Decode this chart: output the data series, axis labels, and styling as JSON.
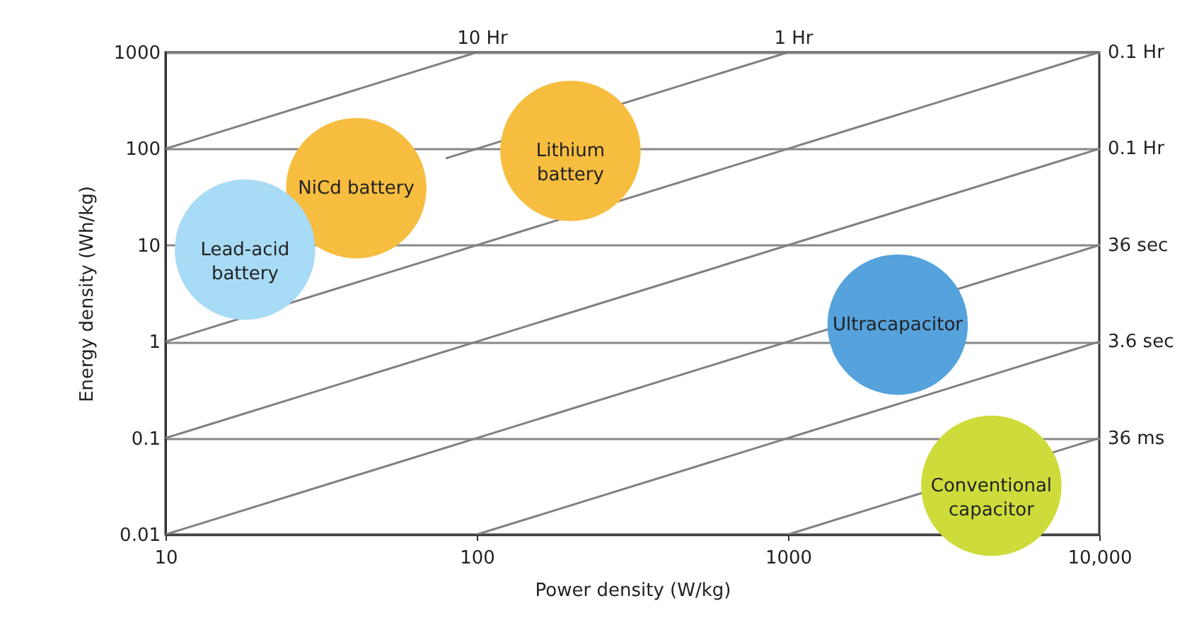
{
  "chart_data": {
    "type": "scatter",
    "xlabel": "Power density (W/kg)",
    "ylabel": "Energy density (Wh/kg)",
    "log": "xy",
    "grid": "y",
    "xlim": [
      10,
      10000
    ],
    "xticks": [
      10,
      100,
      1000,
      {
        "value": 10000,
        "label": "10,000"
      }
    ],
    "ylim": [
      0.01,
      1000
    ],
    "yticks": [
      0.01,
      0.1,
      1,
      10,
      100,
      1000
    ],
    "series": [
      {
        "name": "10 Hr",
        "type": "line",
        "color": "#808080",
        "x": [
          10,
          100
        ],
        "values": [
          100,
          1000
        ]
      },
      {
        "name": "1 Hr",
        "type": "line",
        "color": "#808080",
        "x": [
          80,
          1000
        ],
        "values": [
          80,
          1000
        ]
      },
      {
        "name": "0.1 Hr",
        "type": "line",
        "color": "#808080",
        "x": [
          10,
          10000
        ],
        "values": [
          1,
          1000
        ]
      },
      {
        "name": "0.1 Hr",
        "type": "line",
        "color": "#808080",
        "x": [
          10,
          10000
        ],
        "values": [
          0.1,
          100
        ]
      },
      {
        "name": "36 sec",
        "type": "line",
        "color": "#808080",
        "x": [
          10,
          10000
        ],
        "values": [
          0.01,
          10
        ]
      },
      {
        "name": "3.6 sec",
        "type": "line",
        "color": "#808080",
        "x": [
          100,
          10000
        ],
        "values": [
          0.01,
          1
        ]
      },
      {
        "name": "36 ms",
        "type": "line",
        "color": "#808080",
        "x": [
          1000,
          10000
        ],
        "values": [
          0.01,
          0.1
        ]
      },
      {
        "name": "Lithium battery",
        "color": "#f6bd3f",
        "x": [
          200
        ],
        "values": [
          95
        ]
      },
      {
        "name": "NiCd battery",
        "color": "#f6bd3f",
        "x": [
          41
        ],
        "values": [
          39
        ]
      },
      {
        "name": "Lead-acid battery",
        "color": "#a8dbf5",
        "x": [
          18
        ],
        "values": [
          9
        ]
      },
      {
        "name": "Ultracapacitor",
        "color": "#55a2dc",
        "x": [
          2250
        ],
        "values": [
          1.5
        ]
      },
      {
        "name": "Conventional capacitor",
        "color": "#cddc3a",
        "x": [
          4500
        ],
        "values": [
          0.032
        ]
      }
    ]
  }
}
